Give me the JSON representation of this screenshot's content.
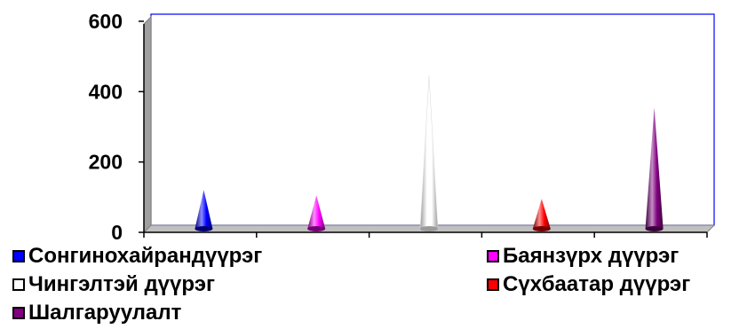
{
  "chart_data": {
    "type": "bar",
    "categories": [
      "Сонгинохайрандүүрэг",
      "Баянзүрх дүүрэг",
      "Чингэлтэй дүүрэг",
      "Сүхбаатар дүүрэг",
      "Шалгаруулалт"
    ],
    "series": [
      {
        "name": "Сонгинохайрандүүрэг",
        "value": 115,
        "color": "#0000ff"
      },
      {
        "name": "Баянзүрх дүүрэг",
        "value": 100,
        "color": "#ff00ff"
      },
      {
        "name": "Чингэлтэй дүүрэг",
        "value": 440,
        "color": "#ffffff"
      },
      {
        "name": "Сүхбаатар дүүрэг",
        "value": 90,
        "color": "#ff0000"
      },
      {
        "name": "Шалгаруулалт",
        "value": 350,
        "color": "#800080"
      }
    ],
    "ylim": [
      0,
      600
    ],
    "yticks": [
      "0",
      "200",
      "400",
      "600"
    ],
    "grid": false,
    "legend_placement": "bottom",
    "title": "",
    "xlabel": "",
    "ylabel": "",
    "plot_border_color": "#0000ff"
  }
}
